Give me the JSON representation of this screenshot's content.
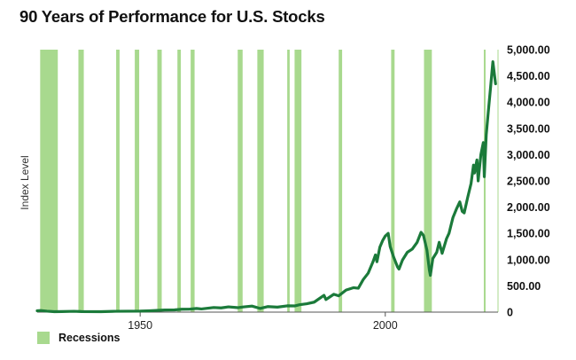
{
  "colors": {
    "line": "#1b7a3a",
    "recession": "#a8d98e",
    "axis": "#555555"
  },
  "chart_data": {
    "type": "line",
    "title": "90 Years of Performance for U.S. Stocks",
    "ylabel": "Index Level",
    "xlabel": "",
    "xlim": [
      1929,
      2023
    ],
    "ylim": [
      0,
      5000
    ],
    "x_ticks": [
      {
        "value": 1950,
        "label": "1950"
      },
      {
        "value": 2000,
        "label": "2000"
      }
    ],
    "y_ticks": [
      {
        "value": 0,
        "label": "0"
      },
      {
        "value": 500,
        "label": "500.00"
      },
      {
        "value": 1000,
        "label": "1,000.00"
      },
      {
        "value": 1500,
        "label": "1,500.00"
      },
      {
        "value": 2000,
        "label": "2,000.00"
      },
      {
        "value": 2500,
        "label": "2,500.00"
      },
      {
        "value": 3000,
        "label": "3,000.00"
      },
      {
        "value": 3500,
        "label": "3,500.00"
      },
      {
        "value": 4000,
        "label": "4,000.00"
      },
      {
        "value": 4500,
        "label": "4,500.00"
      },
      {
        "value": 5000,
        "label": "5,000.00"
      }
    ],
    "legend": {
      "position": "bottom-left",
      "entries": [
        {
          "label": "Recessions",
          "kind": "recession"
        }
      ]
    },
    "recessions": [
      [
        1929.6,
        1933.2
      ],
      [
        1937.4,
        1938.5
      ],
      [
        1945.1,
        1945.8
      ],
      [
        1948.9,
        1949.8
      ],
      [
        1953.5,
        1954.4
      ],
      [
        1957.6,
        1958.3
      ],
      [
        1960.3,
        1961.1
      ],
      [
        1969.9,
        1970.9
      ],
      [
        1973.9,
        1975.2
      ],
      [
        1980.0,
        1980.5
      ],
      [
        1981.5,
        1982.9
      ],
      [
        1990.5,
        1991.2
      ],
      [
        2001.2,
        2001.9
      ],
      [
        2007.9,
        2009.5
      ],
      [
        2020.1,
        2020.3
      ]
    ],
    "series": [
      {
        "values": [
          [
            1929.0,
            25
          ],
          [
            1929.7,
            30
          ],
          [
            1931.0,
            18
          ],
          [
            1932.5,
            8
          ],
          [
            1934.0,
            10
          ],
          [
            1936.5,
            16
          ],
          [
            1938.0,
            11
          ],
          [
            1942.0,
            9
          ],
          [
            1945.0,
            16
          ],
          [
            1950.0,
            19
          ],
          [
            1952.0,
            25
          ],
          [
            1955.0,
            40
          ],
          [
            1957.0,
            42
          ],
          [
            1958.5,
            55
          ],
          [
            1960.0,
            56
          ],
          [
            1961.5,
            70
          ],
          [
            1962.5,
            60
          ],
          [
            1965.0,
            88
          ],
          [
            1966.5,
            80
          ],
          [
            1968.0,
            100
          ],
          [
            1970.0,
            85
          ],
          [
            1971.0,
            98
          ],
          [
            1972.8,
            115
          ],
          [
            1974.5,
            70
          ],
          [
            1976.0,
            105
          ],
          [
            1978.0,
            95
          ],
          [
            1980.0,
            120
          ],
          [
            1981.5,
            118
          ],
          [
            1982.5,
            140
          ],
          [
            1984.0,
            160
          ],
          [
            1985.5,
            190
          ],
          [
            1987.5,
            320
          ],
          [
            1987.9,
            240
          ],
          [
            1989.5,
            340
          ],
          [
            1990.5,
            310
          ],
          [
            1992.0,
            420
          ],
          [
            1993.5,
            465
          ],
          [
            1994.5,
            455
          ],
          [
            1995.5,
            620
          ],
          [
            1996.5,
            740
          ],
          [
            1997.5,
            960
          ],
          [
            1998.0,
            1090
          ],
          [
            1998.3,
            960
          ],
          [
            1998.9,
            1240
          ],
          [
            1999.5,
            1370
          ],
          [
            2000.0,
            1450
          ],
          [
            2000.6,
            1500
          ],
          [
            2001.0,
            1250
          ],
          [
            2001.7,
            1050
          ],
          [
            2002.5,
            860
          ],
          [
            2002.8,
            820
          ],
          [
            2003.5,
            990
          ],
          [
            2004.5,
            1140
          ],
          [
            2005.5,
            1200
          ],
          [
            2006.5,
            1330
          ],
          [
            2007.3,
            1520
          ],
          [
            2007.8,
            1460
          ],
          [
            2008.5,
            1180
          ],
          [
            2009.0,
            800
          ],
          [
            2009.2,
            700
          ],
          [
            2009.7,
            1020
          ],
          [
            2010.5,
            1140
          ],
          [
            2011.0,
            1330
          ],
          [
            2011.6,
            1120
          ],
          [
            2012.5,
            1400
          ],
          [
            2013.0,
            1500
          ],
          [
            2013.8,
            1800
          ],
          [
            2014.5,
            1960
          ],
          [
            2015.2,
            2100
          ],
          [
            2015.7,
            1920
          ],
          [
            2016.1,
            1890
          ],
          [
            2016.8,
            2180
          ],
          [
            2017.5,
            2450
          ],
          [
            2018.0,
            2800
          ],
          [
            2018.2,
            2650
          ],
          [
            2018.7,
            2900
          ],
          [
            2018.95,
            2500
          ],
          [
            2019.5,
            3000
          ],
          [
            2020.0,
            3230
          ],
          [
            2020.2,
            2580
          ],
          [
            2020.6,
            3380
          ],
          [
            2021.0,
            3800
          ],
          [
            2021.5,
            4300
          ],
          [
            2021.95,
            4770
          ],
          [
            2022.3,
            4500
          ],
          [
            2022.5,
            4350
          ]
        ]
      }
    ]
  },
  "legend": {
    "recessions_label": "Recessions"
  }
}
